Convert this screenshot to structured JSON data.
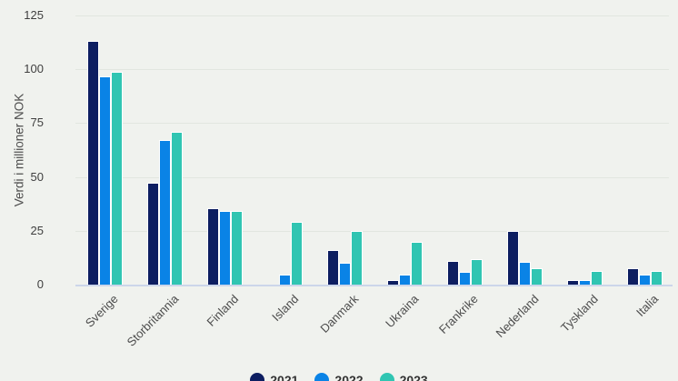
{
  "chart_data": {
    "type": "bar",
    "title": "",
    "xlabel": "",
    "ylabel": "Verdi i millioner NOK",
    "ylim": [
      0,
      125
    ],
    "yticks": [
      0,
      25,
      50,
      75,
      100,
      125
    ],
    "grid": true,
    "legend_position": "bottom-center",
    "background_color": "#f0f2ee",
    "gridline_color": "#e2e6e0",
    "axisline_color": "#ccd6ea",
    "text_color": "#4c4c4c",
    "categories": [
      "Sverige",
      "Storbritannia",
      "Finland",
      "Island",
      "Danmark",
      "Ukraina",
      "Frankrike",
      "Nederland",
      "Tyskland",
      "Italia"
    ],
    "series": [
      {
        "name": "2021",
        "color": "#0d1e61",
        "values": [
          113,
          47.5,
          35.5,
          0,
          16,
          2,
          11,
          25,
          2,
          7.5
        ]
      },
      {
        "name": "2022",
        "color": "#0a83e6",
        "values": [
          96.5,
          67,
          34,
          4.5,
          10,
          4.5,
          6,
          10.5,
          2,
          4.5
        ]
      },
      {
        "name": "2023",
        "color": "#30c5b2",
        "values": [
          99,
          71,
          34,
          29,
          25,
          20,
          12,
          7.5,
          6.5,
          6.5
        ]
      }
    ]
  }
}
